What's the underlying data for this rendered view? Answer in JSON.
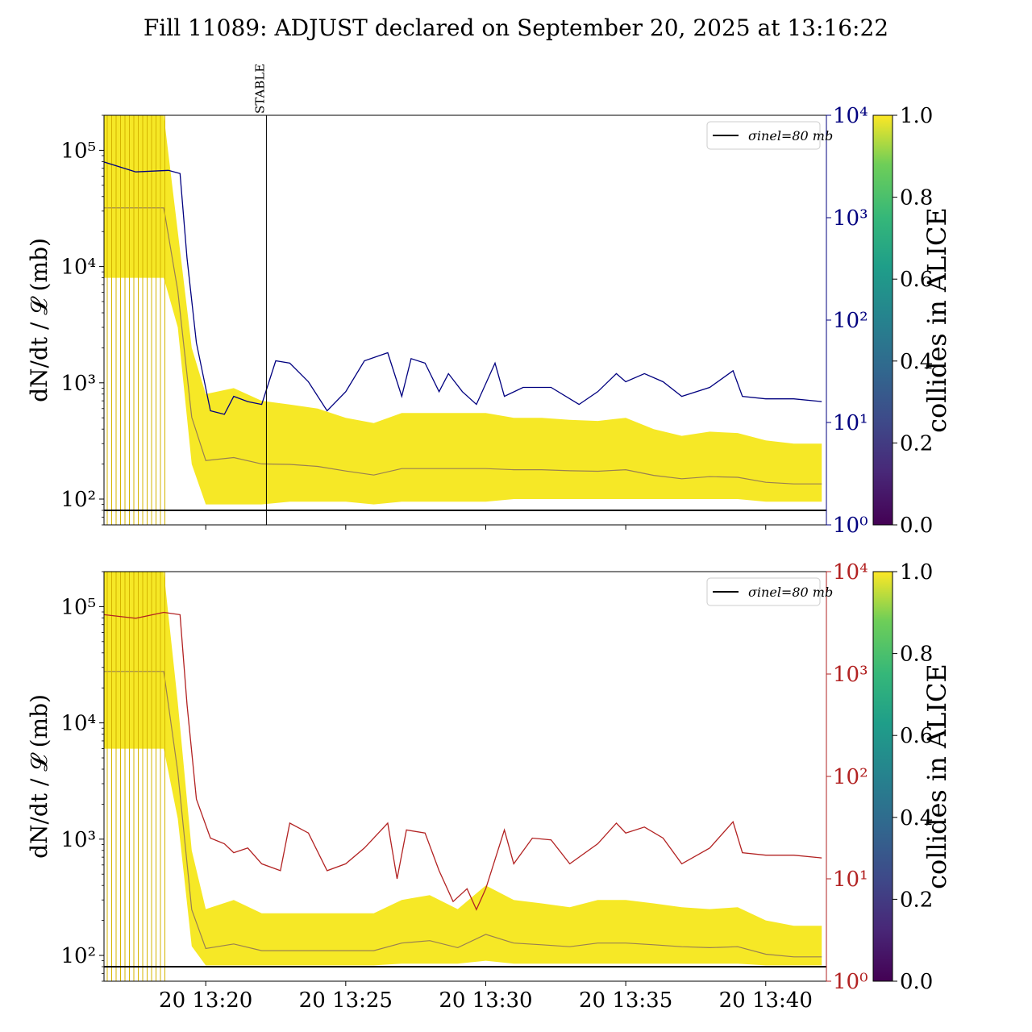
{
  "title": "Fill 11089: ADJUST declared on September 20, 2025 at 13:16:22",
  "colors": {
    "blue_series": "#00007f",
    "red_series": "#b22222",
    "reference_line": "#000000"
  },
  "chart_data": [
    {
      "type": "line",
      "panel": "top",
      "ylabel": "dN/dt / 𝓛 (mb)",
      "yscale": "log",
      "ylim": [
        60,
        200000
      ],
      "y_ticks": [
        100,
        1000,
        10000,
        100000
      ],
      "y_tick_labels": [
        "10²",
        "10³",
        "10⁴",
        "10⁵"
      ],
      "x_time_range": [
        "13:16:22",
        "13:42:10"
      ],
      "x_tick_labels": [],
      "vertical_marker": {
        "label": "STABLE",
        "time": "13:22:10"
      },
      "legend": {
        "entry": "σinel=80 mb",
        "placement": "upper right"
      },
      "reference_line": {
        "label": "σinel=80 mb",
        "value": 80
      },
      "colorbar": {
        "label": "collides in ALICE",
        "range": [
          0,
          1
        ],
        "ticks": [
          "0.0",
          "0.2",
          "0.4",
          "0.6",
          "0.8",
          "1.0"
        ],
        "colormap": "viridis"
      },
      "secondary_axis": {
        "yscale": "log",
        "ylim": [
          1,
          10000
        ],
        "tick_labels": [
          "10⁰",
          "10¹",
          "10²",
          "10³",
          "10⁴"
        ],
        "color": "#00007f",
        "series": [
          [
            "13:16:22",
            3500
          ],
          [
            "13:17:30",
            2800
          ],
          [
            "13:18:40",
            2900
          ],
          [
            "13:19:05",
            2700
          ],
          [
            "13:19:20",
            400
          ],
          [
            "13:19:40",
            60
          ],
          [
            "13:20:10",
            13
          ],
          [
            "13:20:40",
            12
          ],
          [
            "13:21:00",
            18
          ],
          [
            "13:21:30",
            16
          ],
          [
            "13:22:00",
            15
          ],
          [
            "13:22:30",
            40
          ],
          [
            "13:23:00",
            38
          ],
          [
            "13:23:40",
            25
          ],
          [
            "13:24:20",
            13
          ],
          [
            "13:25:00",
            20
          ],
          [
            "13:25:40",
            40
          ],
          [
            "13:26:30",
            48
          ],
          [
            "13:27:00",
            18
          ],
          [
            "13:27:20",
            42
          ],
          [
            "13:27:50",
            38
          ],
          [
            "13:28:20",
            20
          ],
          [
            "13:28:40",
            30
          ],
          [
            "13:29:10",
            20
          ],
          [
            "13:29:40",
            15
          ],
          [
            "13:30:20",
            38
          ],
          [
            "13:30:40",
            18
          ],
          [
            "13:31:20",
            22
          ],
          [
            "13:32:20",
            22
          ],
          [
            "13:33:20",
            15
          ],
          [
            "13:34:00",
            20
          ],
          [
            "13:34:40",
            30
          ],
          [
            "13:35:00",
            25
          ],
          [
            "13:35:40",
            30
          ],
          [
            "13:36:20",
            25
          ],
          [
            "13:37:00",
            18
          ],
          [
            "13:38:00",
            22
          ],
          [
            "13:38:50",
            32
          ],
          [
            "13:39:10",
            18
          ],
          [
            "13:40:00",
            17
          ],
          [
            "13:41:00",
            17
          ],
          [
            "13:42:00",
            16
          ]
        ]
      },
      "band": {
        "yellow_upper": [
          [
            "13:16:22",
            200000
          ],
          [
            "13:18:30",
            200000
          ],
          [
            "13:19:00",
            20000
          ],
          [
            "13:19:30",
            2000
          ],
          [
            "13:20:00",
            800
          ],
          [
            "13:21:00",
            900
          ],
          [
            "13:22:00",
            700
          ],
          [
            "13:23:00",
            650
          ],
          [
            "13:24:00",
            600
          ],
          [
            "13:25:00",
            500
          ],
          [
            "13:26:00",
            450
          ],
          [
            "13:27:00",
            550
          ],
          [
            "13:28:00",
            550
          ],
          [
            "13:29:00",
            550
          ],
          [
            "13:30:00",
            550
          ],
          [
            "13:31:00",
            500
          ],
          [
            "13:32:00",
            500
          ],
          [
            "13:33:00",
            480
          ],
          [
            "13:34:00",
            470
          ],
          [
            "13:35:00",
            500
          ],
          [
            "13:36:00",
            400
          ],
          [
            "13:37:00",
            350
          ],
          [
            "13:38:00",
            380
          ],
          [
            "13:39:00",
            370
          ],
          [
            "13:40:00",
            320
          ],
          [
            "13:41:00",
            300
          ],
          [
            "13:42:00",
            300
          ]
        ],
        "yellow_lower": [
          [
            "13:16:22",
            8000
          ],
          [
            "13:18:30",
            8000
          ],
          [
            "13:19:00",
            3000
          ],
          [
            "13:19:30",
            200
          ],
          [
            "13:20:00",
            90
          ],
          [
            "13:21:00",
            90
          ],
          [
            "13:22:00",
            90
          ],
          [
            "13:23:00",
            95
          ],
          [
            "13:24:00",
            95
          ],
          [
            "13:25:00",
            95
          ],
          [
            "13:26:00",
            90
          ],
          [
            "13:27:00",
            95
          ],
          [
            "13:28:00",
            95
          ],
          [
            "13:29:00",
            95
          ],
          [
            "13:30:00",
            95
          ],
          [
            "13:31:00",
            100
          ],
          [
            "13:32:00",
            100
          ],
          [
            "13:33:00",
            100
          ],
          [
            "13:34:00",
            100
          ],
          [
            "13:35:00",
            100
          ],
          [
            "13:36:00",
            100
          ],
          [
            "13:37:00",
            100
          ],
          [
            "13:38:00",
            100
          ],
          [
            "13:39:00",
            100
          ],
          [
            "13:40:00",
            95
          ],
          [
            "13:41:00",
            95
          ],
          [
            "13:42:00",
            95
          ]
        ]
      }
    },
    {
      "type": "line",
      "panel": "bottom",
      "ylabel": "dN/dt / 𝓛 (mb)",
      "yscale": "log",
      "ylim": [
        60,
        200000
      ],
      "y_ticks": [
        100,
        1000,
        10000,
        100000
      ],
      "y_tick_labels": [
        "10²",
        "10³",
        "10⁴",
        "10⁵"
      ],
      "x_time_range": [
        "13:16:22",
        "13:42:10"
      ],
      "x_ticks": [
        "13:20:00",
        "13:25:00",
        "13:30:00",
        "13:35:00",
        "13:40:00"
      ],
      "x_tick_labels": [
        "20 13:20",
        "20 13:25",
        "20 13:30",
        "20 13:35",
        "20 13:40"
      ],
      "legend": {
        "entry": "σinel=80 mb",
        "placement": "upper right"
      },
      "reference_line": {
        "label": "σinel=80 mb",
        "value": 80
      },
      "colorbar": {
        "label": "collides in ALICE",
        "range": [
          0,
          1
        ],
        "ticks": [
          "0.0",
          "0.2",
          "0.4",
          "0.6",
          "0.8",
          "1.0"
        ],
        "colormap": "viridis"
      },
      "secondary_axis": {
        "yscale": "log",
        "ylim": [
          1,
          10000
        ],
        "tick_labels": [
          "10⁰",
          "10¹",
          "10²",
          "10³",
          "10⁴"
        ],
        "color": "#b22222",
        "series": [
          [
            "13:16:22",
            3800
          ],
          [
            "13:17:30",
            3500
          ],
          [
            "13:18:30",
            4000
          ],
          [
            "13:19:05",
            3800
          ],
          [
            "13:19:20",
            500
          ],
          [
            "13:19:40",
            60
          ],
          [
            "13:20:10",
            25
          ],
          [
            "13:20:40",
            22
          ],
          [
            "13:21:00",
            18
          ],
          [
            "13:21:30",
            20
          ],
          [
            "13:22:00",
            14
          ],
          [
            "13:22:40",
            12
          ],
          [
            "13:23:00",
            35
          ],
          [
            "13:23:40",
            28
          ],
          [
            "13:24:20",
            12
          ],
          [
            "13:25:00",
            14
          ],
          [
            "13:25:40",
            20
          ],
          [
            "13:26:30",
            35
          ],
          [
            "13:26:50",
            10
          ],
          [
            "13:27:10",
            30
          ],
          [
            "13:27:50",
            28
          ],
          [
            "13:28:20",
            12
          ],
          [
            "13:28:50",
            6
          ],
          [
            "13:29:20",
            8
          ],
          [
            "13:29:40",
            5
          ],
          [
            "13:30:00",
            8
          ],
          [
            "13:30:40",
            30
          ],
          [
            "13:31:00",
            14
          ],
          [
            "13:31:40",
            25
          ],
          [
            "13:32:20",
            24
          ],
          [
            "13:33:00",
            14
          ],
          [
            "13:34:00",
            22
          ],
          [
            "13:34:40",
            35
          ],
          [
            "13:35:00",
            28
          ],
          [
            "13:35:40",
            32
          ],
          [
            "13:36:20",
            25
          ],
          [
            "13:37:00",
            14
          ],
          [
            "13:38:00",
            20
          ],
          [
            "13:38:50",
            36
          ],
          [
            "13:39:10",
            18
          ],
          [
            "13:40:00",
            17
          ],
          [
            "13:41:00",
            17
          ],
          [
            "13:42:00",
            16
          ]
        ]
      },
      "band": {
        "yellow_upper": [
          [
            "13:16:22",
            200000
          ],
          [
            "13:18:30",
            200000
          ],
          [
            "13:19:00",
            15000
          ],
          [
            "13:19:30",
            800
          ],
          [
            "13:20:00",
            250
          ],
          [
            "13:21:00",
            300
          ],
          [
            "13:22:00",
            230
          ],
          [
            "13:23:00",
            230
          ],
          [
            "13:24:00",
            230
          ],
          [
            "13:25:00",
            230
          ],
          [
            "13:26:00",
            230
          ],
          [
            "13:27:00",
            300
          ],
          [
            "13:28:00",
            330
          ],
          [
            "13:29:00",
            250
          ],
          [
            "13:30:00",
            400
          ],
          [
            "13:31:00",
            300
          ],
          [
            "13:32:00",
            280
          ],
          [
            "13:33:00",
            260
          ],
          [
            "13:34:00",
            300
          ],
          [
            "13:35:00",
            300
          ],
          [
            "13:36:00",
            280
          ],
          [
            "13:37:00",
            260
          ],
          [
            "13:38:00",
            250
          ],
          [
            "13:39:00",
            260
          ],
          [
            "13:40:00",
            200
          ],
          [
            "13:41:00",
            180
          ],
          [
            "13:42:00",
            180
          ]
        ],
        "yellow_lower": [
          [
            "13:16:22",
            6000
          ],
          [
            "13:18:30",
            6000
          ],
          [
            "13:19:00",
            1500
          ],
          [
            "13:19:30",
            120
          ],
          [
            "13:20:00",
            82
          ],
          [
            "13:21:00",
            82
          ],
          [
            "13:22:00",
            82
          ],
          [
            "13:23:00",
            82
          ],
          [
            "13:24:00",
            82
          ],
          [
            "13:25:00",
            82
          ],
          [
            "13:26:00",
            82
          ],
          [
            "13:27:00",
            85
          ],
          [
            "13:28:00",
            85
          ],
          [
            "13:29:00",
            85
          ],
          [
            "13:30:00",
            90
          ],
          [
            "13:31:00",
            85
          ],
          [
            "13:32:00",
            85
          ],
          [
            "13:33:00",
            85
          ],
          [
            "13:34:00",
            85
          ],
          [
            "13:35:00",
            85
          ],
          [
            "13:36:00",
            85
          ],
          [
            "13:37:00",
            85
          ],
          [
            "13:38:00",
            85
          ],
          [
            "13:39:00",
            85
          ],
          [
            "13:40:00",
            82
          ],
          [
            "13:41:00",
            82
          ],
          [
            "13:42:00",
            82
          ]
        ]
      }
    }
  ]
}
